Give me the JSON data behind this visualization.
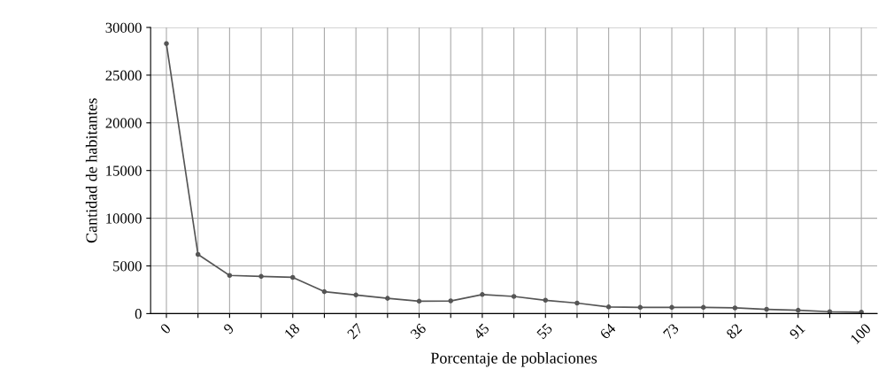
{
  "chart_data": {
    "type": "line",
    "xlabel": "Porcentaje de poblaciones",
    "ylabel": "Cantidad de habitantes",
    "categories": [
      "0",
      null,
      "9",
      null,
      "18",
      null,
      "27",
      null,
      "36",
      null,
      "45",
      null,
      "55",
      null,
      "64",
      null,
      "73",
      null,
      "82",
      null,
      "91",
      null,
      "100"
    ],
    "series": [
      {
        "color": "#555555",
        "values": [
          28300,
          6200,
          4000,
          3900,
          3800,
          2300,
          1950,
          1600,
          1300,
          1330,
          2000,
          1800,
          1400,
          1100,
          700,
          650,
          650,
          650,
          600,
          450,
          350,
          200,
          150
        ]
      }
    ],
    "ylim": [
      0,
      30000
    ],
    "yticks": [
      0,
      5000,
      10000,
      15000,
      20000,
      25000,
      30000
    ],
    "grid": true,
    "marker": "circle",
    "line_style": "solid"
  }
}
